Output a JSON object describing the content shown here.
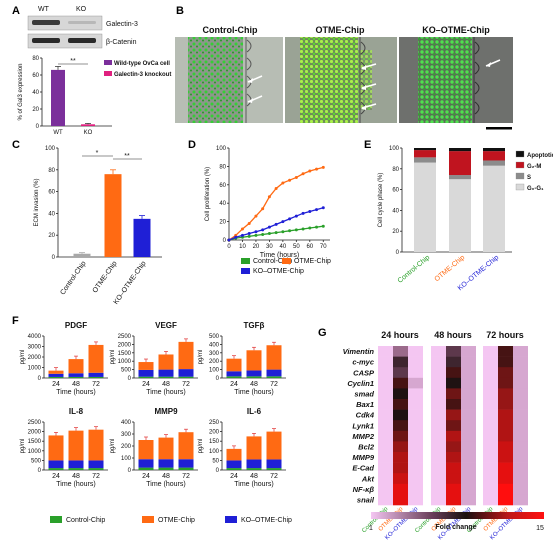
{
  "panels": {
    "A": {
      "letter": "A",
      "blot": {
        "lanes": [
          "WT",
          "KO"
        ],
        "bands": [
          "Galectin-3",
          "β-Catenin"
        ]
      },
      "chart_data": {
        "type": "bar",
        "categories": [
          "WT",
          "KO"
        ],
        "values": [
          66,
          2
        ],
        "errors": [
          4,
          1
        ],
        "colors": [
          "#7b2f9b",
          "#e0207f"
        ],
        "ylabel": "% of Gal3 expression",
        "yticks": [
          0,
          20,
          40,
          60,
          80
        ],
        "ylim": [
          0,
          80
        ],
        "legend": [
          "Wild-type OvCa cell",
          "Galectin-3 knockout"
        ],
        "significance": "**"
      }
    },
    "B": {
      "letter": "B",
      "titles": [
        "Control-Chip",
        "OTME-Chip",
        "KO–OTME-Chip"
      ]
    },
    "C": {
      "letter": "C",
      "chart_data": {
        "type": "bar",
        "categories": [
          "Control-Chip",
          "OTME-Chip",
          "KO–OTME-Chip"
        ],
        "category_colors": [
          "#2aa02a",
          "#ff6a13",
          "#1f1fd6"
        ],
        "values": [
          3,
          76,
          35
        ],
        "errors": [
          1,
          4,
          3
        ],
        "colors": [
          "#a8a8a8",
          "#ff6a13",
          "#1f1fd6"
        ],
        "ylabel": "ECM invasion (%)",
        "yticks": [
          0,
          20,
          40,
          60,
          80,
          100
        ],
        "ylim": [
          0,
          100
        ],
        "significance": [
          "*",
          "**"
        ]
      }
    },
    "D": {
      "letter": "D",
      "chart_data": {
        "type": "line",
        "x": [
          0,
          5,
          10,
          15,
          20,
          25,
          30,
          35,
          40,
          45,
          50,
          55,
          60,
          65,
          70
        ],
        "series": [
          {
            "name": "Control-Chip",
            "color": "#2aa02a",
            "values": [
              0,
              2,
              3,
              4,
              5,
              6,
              7,
              8,
              9,
              10,
              11,
              12,
              13,
              14,
              15
            ]
          },
          {
            "name": "OTME-Chip",
            "color": "#ff6a13",
            "values": [
              0,
              5,
              12,
              18,
              26,
              34,
              47,
              56,
              62,
              65,
              68,
              72,
              75,
              77,
              79
            ]
          },
          {
            "name": "KO–OTME-Chip",
            "color": "#1f1fd6",
            "values": [
              0,
              3,
              5,
              7,
              9,
              11,
              14,
              17,
              20,
              23,
              26,
              29,
              31,
              33,
              35
            ]
          }
        ],
        "xlabel": "Time (hours)",
        "ylabel": "Cell proliferation (%)",
        "xticks": [
          0,
          10,
          20,
          30,
          40,
          50,
          60,
          70
        ],
        "yticks": [
          0,
          20,
          40,
          60,
          80,
          100
        ],
        "xlim": [
          0,
          75
        ],
        "ylim": [
          0,
          100
        ]
      },
      "legend": [
        "Control-Chip",
        "OTME-Chip",
        "KO–OTME-Chip"
      ]
    },
    "E": {
      "letter": "E",
      "chart_data": {
        "type": "bar",
        "stacked": true,
        "categories": [
          "Control-Chip",
          "OTME-Chip",
          "KO–OTME-Chip"
        ],
        "category_colors": [
          "#2aa02a",
          "#ff6a13",
          "#1f1fd6"
        ],
        "series": [
          {
            "name": "G₀-G₁",
            "color": "#d9d9d9",
            "values": [
              86,
              70,
              83
            ]
          },
          {
            "name": "S",
            "color": "#8c8c8c",
            "values": [
              5,
              4,
              5
            ]
          },
          {
            "name": "G₂-M",
            "color": "#c0141f",
            "values": [
              7,
              23,
              9
            ]
          },
          {
            "name": "Apoptotic",
            "color": "#111111",
            "values": [
              2,
              3,
              3
            ]
          }
        ],
        "ylabel": "Cell cycle phase (%)",
        "yticks": [
          0,
          20,
          40,
          60,
          80,
          100
        ],
        "ylim": [
          0,
          100
        ]
      }
    },
    "F": {
      "letter": "F",
      "legend": [
        "Control-Chip",
        "OTME-Chip",
        "KO–OTME-Chip"
      ],
      "chart_data": [
        {
          "type": "bar",
          "stacked": true,
          "title": "PDGF",
          "ylabel": "pg/ml",
          "xlabel": "Time (hours)",
          "categories": [
            "24",
            "48",
            "72"
          ],
          "ylim": [
            0,
            4000
          ],
          "yticks": [
            0,
            1000,
            2000,
            3000,
            4000
          ],
          "series": [
            {
              "name": "Control-Chip",
              "values": [
                100,
                100,
                100
              ]
            },
            {
              "name": "KO–OTME-Chip",
              "values": [
                300,
                350,
                400
              ]
            },
            {
              "name": "OTME-Chip",
              "values": [
                300,
                1350,
                2650
              ]
            }
          ]
        },
        {
          "type": "bar",
          "stacked": true,
          "title": "VEGF",
          "ylabel": "pg/ml",
          "xlabel": "Time (hours)",
          "categories": [
            "24",
            "48",
            "72"
          ],
          "ylim": [
            0,
            2500
          ],
          "yticks": [
            0,
            500,
            1000,
            1500,
            2000,
            2500
          ],
          "series": [
            {
              "name": "Control-Chip",
              "values": [
                80,
                80,
                80
              ]
            },
            {
              "name": "KO–OTME-Chip",
              "values": [
                400,
                420,
                450
              ]
            },
            {
              "name": "OTME-Chip",
              "values": [
                470,
                900,
                1620
              ]
            }
          ]
        },
        {
          "type": "bar",
          "stacked": true,
          "title": "TGFβ",
          "ylabel": "pg/ml",
          "xlabel": "Time (hours)",
          "categories": [
            "24",
            "48",
            "72"
          ],
          "ylim": [
            0,
            500
          ],
          "yticks": [
            0,
            100,
            200,
            300,
            400,
            500
          ],
          "series": [
            {
              "name": "Control-Chip",
              "values": [
                20,
                20,
                20
              ]
            },
            {
              "name": "KO–OTME-Chip",
              "values": [
                60,
                70,
                80
              ]
            },
            {
              "name": "OTME-Chip",
              "values": [
                150,
                240,
                290
              ]
            }
          ]
        },
        {
          "type": "bar",
          "stacked": true,
          "title": "IL-8",
          "ylabel": "pg/ml",
          "xlabel": "Time (hours)",
          "categories": [
            "24",
            "48",
            "72"
          ],
          "ylim": [
            0,
            2500
          ],
          "yticks": [
            0,
            500,
            1000,
            1500,
            2000,
            2500
          ],
          "series": [
            {
              "name": "Control-Chip",
              "values": [
                100,
                100,
                100
              ]
            },
            {
              "name": "KO–OTME-Chip",
              "values": [
                400,
                400,
                400
              ]
            },
            {
              "name": "OTME-Chip",
              "values": [
                1300,
                1550,
                1600
              ]
            }
          ]
        },
        {
          "type": "bar",
          "stacked": true,
          "title": "MMP9",
          "ylabel": "pg/ml",
          "xlabel": "Time (hours)",
          "categories": [
            "24",
            "48",
            "72"
          ],
          "ylim": [
            0,
            400
          ],
          "yticks": [
            0,
            100,
            200,
            300,
            400
          ],
          "series": [
            {
              "name": "Control-Chip",
              "values": [
                20,
                20,
                20
              ]
            },
            {
              "name": "KO–OTME-Chip",
              "values": [
                70,
                70,
                70
              ]
            },
            {
              "name": "OTME-Chip",
              "values": [
                160,
                180,
                225
              ]
            }
          ]
        },
        {
          "type": "bar",
          "stacked": true,
          "title": "IL-6",
          "ylabel": "pg/ml",
          "xlabel": "Time (hours)",
          "categories": [
            "24",
            "48",
            "72"
          ],
          "ylim": [
            0,
            250
          ],
          "yticks": [
            0,
            50,
            100,
            150,
            200,
            250
          ],
          "series": [
            {
              "name": "Control-Chip",
              "values": [
                10,
                10,
                10
              ]
            },
            {
              "name": "KO–OTME-Chip",
              "values": [
                40,
                45,
                45
              ]
            },
            {
              "name": "OTME-Chip",
              "values": [
                60,
                120,
                145
              ]
            }
          ]
        }
      ]
    },
    "G": {
      "letter": "G",
      "chart_data": {
        "type": "heatmap",
        "timepoints": [
          "24 hours",
          "48 hours",
          "72 hours"
        ],
        "columns": [
          "Control-Chip",
          "OTME-Chip",
          "KO–OTME-Chip"
        ],
        "column_colors": [
          "#2aa02a",
          "#ff6a13",
          "#1f1fd6"
        ],
        "rows": [
          "Vimentin",
          "c-myc",
          "CASP",
          "Cyclin1",
          "smad",
          "Bax1",
          "Cdk4",
          "Lynk1",
          "MMP2",
          "Bcl2",
          "MMP9",
          "E-Cad",
          "Akt",
          "NF-κβ",
          "snail"
        ],
        "values": [
          [
            [
              1,
              4,
              1
            ],
            [
              1,
              7,
              1
            ],
            [
              1,
              6,
              1
            ],
            [
              1,
              9,
              2
            ],
            [
              1,
              8,
              1
            ],
            [
              1,
              9,
              1
            ],
            [
              1,
              8,
              1
            ],
            [
              1,
              9,
              1
            ],
            [
              1,
              10,
              1
            ],
            [
              1,
              11,
              1
            ],
            [
              1,
              12,
              1
            ],
            [
              1,
              12,
              1
            ],
            [
              1,
              13,
              1
            ],
            [
              1,
              14,
              1
            ],
            [
              1,
              14,
              1
            ]
          ],
          [
            [
              1,
              6,
              2
            ],
            [
              1,
              7,
              2
            ],
            [
              1,
              9,
              2
            ],
            [
              1,
              8,
              2
            ],
            [
              1,
              10,
              2
            ],
            [
              1,
              9,
              2
            ],
            [
              1,
              11,
              2
            ],
            [
              1,
              10,
              2
            ],
            [
              1,
              12,
              2
            ],
            [
              1,
              11,
              2
            ],
            [
              1,
              12,
              2
            ],
            [
              1,
              13,
              2
            ],
            [
              1,
              13,
              2
            ],
            [
              1,
              14,
              2
            ],
            [
              1,
              14,
              2
            ]
          ],
          [
            [
              1,
              9,
              2
            ],
            [
              1,
              9,
              2
            ],
            [
              1,
              10,
              2
            ],
            [
              1,
              10,
              2
            ],
            [
              1,
              11,
              2
            ],
            [
              1,
              11,
              2
            ],
            [
              1,
              12,
              2
            ],
            [
              1,
              12,
              2
            ],
            [
              1,
              12,
              2
            ],
            [
              1,
              13,
              2
            ],
            [
              1,
              13,
              2
            ],
            [
              1,
              14,
              2
            ],
            [
              1,
              14,
              2
            ],
            [
              1,
              15,
              2
            ],
            [
              1,
              15,
              2
            ]
          ]
        ],
        "colorbar": {
          "min": 1,
          "max": 15,
          "label": "Fold change"
        }
      }
    }
  }
}
